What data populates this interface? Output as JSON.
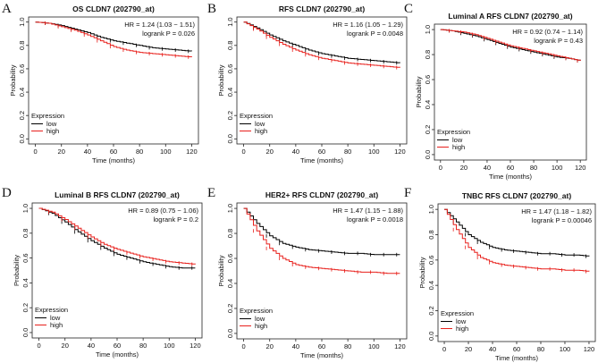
{
  "chart_data": [
    {
      "type": "line",
      "panel": "A",
      "title": "OS CLDN7 (202790_at)",
      "xlabel": "Time (months)",
      "ylabel": "Probability",
      "xlim": [
        0,
        120
      ],
      "ylim": [
        0,
        1
      ],
      "xticks": [
        "0",
        "20",
        "40",
        "60",
        "80",
        "100",
        "120"
      ],
      "yticks": [
        "0.0",
        "0.2",
        "0.4",
        "0.6",
        "0.8",
        "1.0"
      ],
      "hr_text": "HR = 1.24 (1.03 − 1.51)",
      "p_text": "logrank P = 0.026",
      "legend_title": "Expression",
      "series": [
        {
          "name": "low",
          "color": "#000000",
          "x": [
            0,
            10,
            20,
            30,
            40,
            50,
            60,
            70,
            80,
            90,
            100,
            110,
            120
          ],
          "y": [
            1.0,
            0.99,
            0.97,
            0.94,
            0.91,
            0.87,
            0.84,
            0.82,
            0.8,
            0.78,
            0.77,
            0.76,
            0.75
          ]
        },
        {
          "name": "high",
          "color": "#e8201c",
          "x": [
            0,
            10,
            20,
            30,
            40,
            50,
            60,
            70,
            80,
            90,
            100,
            110,
            120
          ],
          "y": [
            1.0,
            0.99,
            0.96,
            0.93,
            0.89,
            0.84,
            0.79,
            0.76,
            0.74,
            0.73,
            0.72,
            0.71,
            0.7
          ]
        }
      ]
    },
    {
      "type": "line",
      "panel": "B",
      "title": "RFS CLDN7 (202790_at)",
      "xlabel": "Time (months)",
      "ylabel": "Probability",
      "xlim": [
        0,
        120
      ],
      "ylim": [
        0,
        1
      ],
      "xticks": [
        "0",
        "20",
        "40",
        "60",
        "80",
        "100",
        "120"
      ],
      "yticks": [
        "0.0",
        "0.2",
        "0.4",
        "0.6",
        "0.8",
        "1.0"
      ],
      "hr_text": "HR = 1.16 (1.05 − 1.29)",
      "p_text": "logrank P = 0.0048",
      "legend_title": "Expression",
      "series": [
        {
          "name": "low",
          "color": "#000000",
          "x": [
            0,
            10,
            20,
            30,
            40,
            50,
            60,
            70,
            80,
            90,
            100,
            110,
            120
          ],
          "y": [
            1.0,
            0.95,
            0.89,
            0.84,
            0.8,
            0.76,
            0.73,
            0.71,
            0.69,
            0.68,
            0.67,
            0.66,
            0.65
          ]
        },
        {
          "name": "high",
          "color": "#e8201c",
          "x": [
            0,
            10,
            20,
            30,
            40,
            50,
            60,
            70,
            80,
            90,
            100,
            110,
            120
          ],
          "y": [
            1.0,
            0.94,
            0.87,
            0.81,
            0.76,
            0.72,
            0.69,
            0.67,
            0.65,
            0.64,
            0.63,
            0.62,
            0.61
          ]
        }
      ]
    },
    {
      "type": "line",
      "panel": "C",
      "title": "Luminal A RFS CLDN7 (202790_at)",
      "xlabel": "Time (months)",
      "ylabel": "Probability",
      "xlim": [
        0,
        120
      ],
      "ylim": [
        0,
        1
      ],
      "xticks": [
        "0",
        "20",
        "40",
        "60",
        "80",
        "100",
        "120"
      ],
      "yticks": [
        "0.0",
        "0.2",
        "0.4",
        "0.6",
        "0.8",
        "1.0"
      ],
      "hr_text": "HR = 0.92 (0.74 − 1.14)",
      "p_text": "logrank P = 0.43",
      "legend_title": "Expression",
      "series": [
        {
          "name": "low",
          "color": "#000000",
          "x": [
            0,
            10,
            20,
            30,
            40,
            50,
            60,
            70,
            80,
            90,
            100,
            110,
            120
          ],
          "y": [
            1.0,
            0.99,
            0.97,
            0.95,
            0.92,
            0.89,
            0.86,
            0.84,
            0.82,
            0.8,
            0.78,
            0.77,
            0.75
          ]
        },
        {
          "name": "high",
          "color": "#e8201c",
          "x": [
            0,
            10,
            20,
            30,
            40,
            50,
            60,
            70,
            80,
            90,
            100,
            110,
            120
          ],
          "y": [
            1.0,
            0.99,
            0.98,
            0.96,
            0.93,
            0.9,
            0.87,
            0.85,
            0.83,
            0.81,
            0.79,
            0.77,
            0.75
          ]
        }
      ]
    },
    {
      "type": "line",
      "panel": "D",
      "title": "Luminal B RFS CLDN7 (202790_at)",
      "xlabel": "Time (months)",
      "ylabel": "Probability",
      "xlim": [
        0,
        120
      ],
      "ylim": [
        0,
        1
      ],
      "xticks": [
        "0",
        "20",
        "40",
        "60",
        "80",
        "100",
        "120"
      ],
      "yticks": [
        "0.0",
        "0.2",
        "0.4",
        "0.6",
        "0.8",
        "1.0"
      ],
      "hr_text": "HR = 0.89 (0.75 − 1.06)",
      "p_text": "logrank P = 0.2",
      "legend_title": "Expression",
      "series": [
        {
          "name": "low",
          "color": "#000000",
          "x": [
            0,
            10,
            20,
            30,
            40,
            50,
            60,
            70,
            80,
            90,
            100,
            110,
            120
          ],
          "y": [
            1.0,
            0.96,
            0.89,
            0.81,
            0.74,
            0.68,
            0.63,
            0.6,
            0.57,
            0.55,
            0.53,
            0.52,
            0.52
          ]
        },
        {
          "name": "high",
          "color": "#e8201c",
          "x": [
            0,
            10,
            20,
            30,
            40,
            50,
            60,
            70,
            80,
            90,
            100,
            110,
            120
          ],
          "y": [
            1.0,
            0.97,
            0.91,
            0.84,
            0.77,
            0.71,
            0.67,
            0.64,
            0.61,
            0.59,
            0.57,
            0.56,
            0.55
          ]
        }
      ]
    },
    {
      "type": "line",
      "panel": "E",
      "title": "HER2+ RFS CLDN7 (202790_at)",
      "xlabel": "Time (months)",
      "ylabel": "Probability",
      "xlim": [
        0,
        120
      ],
      "ylim": [
        0,
        1
      ],
      "xticks": [
        "0",
        "20",
        "40",
        "60",
        "80",
        "100",
        "120"
      ],
      "yticks": [
        "0.0",
        "0.2",
        "0.4",
        "0.6",
        "0.8",
        "1.0"
      ],
      "hr_text": "HR = 1.47 (1.15 − 1.88)",
      "p_text": "logrank P = 0.0018",
      "legend_title": "Expression",
      "series": [
        {
          "name": "low",
          "color": "#000000",
          "x": [
            0,
            10,
            20,
            30,
            40,
            50,
            60,
            70,
            80,
            90,
            100,
            110,
            120
          ],
          "y": [
            1.0,
            0.88,
            0.78,
            0.72,
            0.69,
            0.67,
            0.66,
            0.65,
            0.64,
            0.64,
            0.63,
            0.63,
            0.63
          ]
        },
        {
          "name": "high",
          "color": "#e8201c",
          "x": [
            0,
            10,
            20,
            30,
            40,
            50,
            60,
            70,
            80,
            90,
            100,
            110,
            120
          ],
          "y": [
            1.0,
            0.82,
            0.68,
            0.6,
            0.55,
            0.53,
            0.52,
            0.51,
            0.5,
            0.49,
            0.49,
            0.48,
            0.48
          ]
        }
      ]
    },
    {
      "type": "line",
      "panel": "F",
      "title": "TNBC RFS CLDN7 (202790_at)",
      "xlabel": "Time (months)",
      "ylabel": "Probability",
      "xlim": [
        0,
        120
      ],
      "ylim": [
        0,
        1
      ],
      "xticks": [
        "0",
        "20",
        "40",
        "60",
        "80",
        "100",
        "120"
      ],
      "yticks": [
        "0.0",
        "0.2",
        "0.4",
        "0.6",
        "0.8",
        "1.0"
      ],
      "hr_text": "HR = 1.47 (1.18 − 1.82)",
      "p_text": "logrank P = 0.00046",
      "legend_title": "Expression",
      "series": [
        {
          "name": "low",
          "color": "#000000",
          "x": [
            0,
            10,
            20,
            30,
            40,
            50,
            60,
            70,
            80,
            90,
            100,
            110,
            120
          ],
          "y": [
            1.0,
            0.9,
            0.8,
            0.74,
            0.7,
            0.68,
            0.67,
            0.66,
            0.65,
            0.65,
            0.64,
            0.64,
            0.63
          ]
        },
        {
          "name": "high",
          "color": "#e8201c",
          "x": [
            0,
            10,
            20,
            30,
            40,
            50,
            60,
            70,
            80,
            90,
            100,
            110,
            120
          ],
          "y": [
            1.0,
            0.84,
            0.7,
            0.62,
            0.58,
            0.56,
            0.55,
            0.54,
            0.53,
            0.53,
            0.52,
            0.52,
            0.51
          ]
        }
      ]
    }
  ]
}
